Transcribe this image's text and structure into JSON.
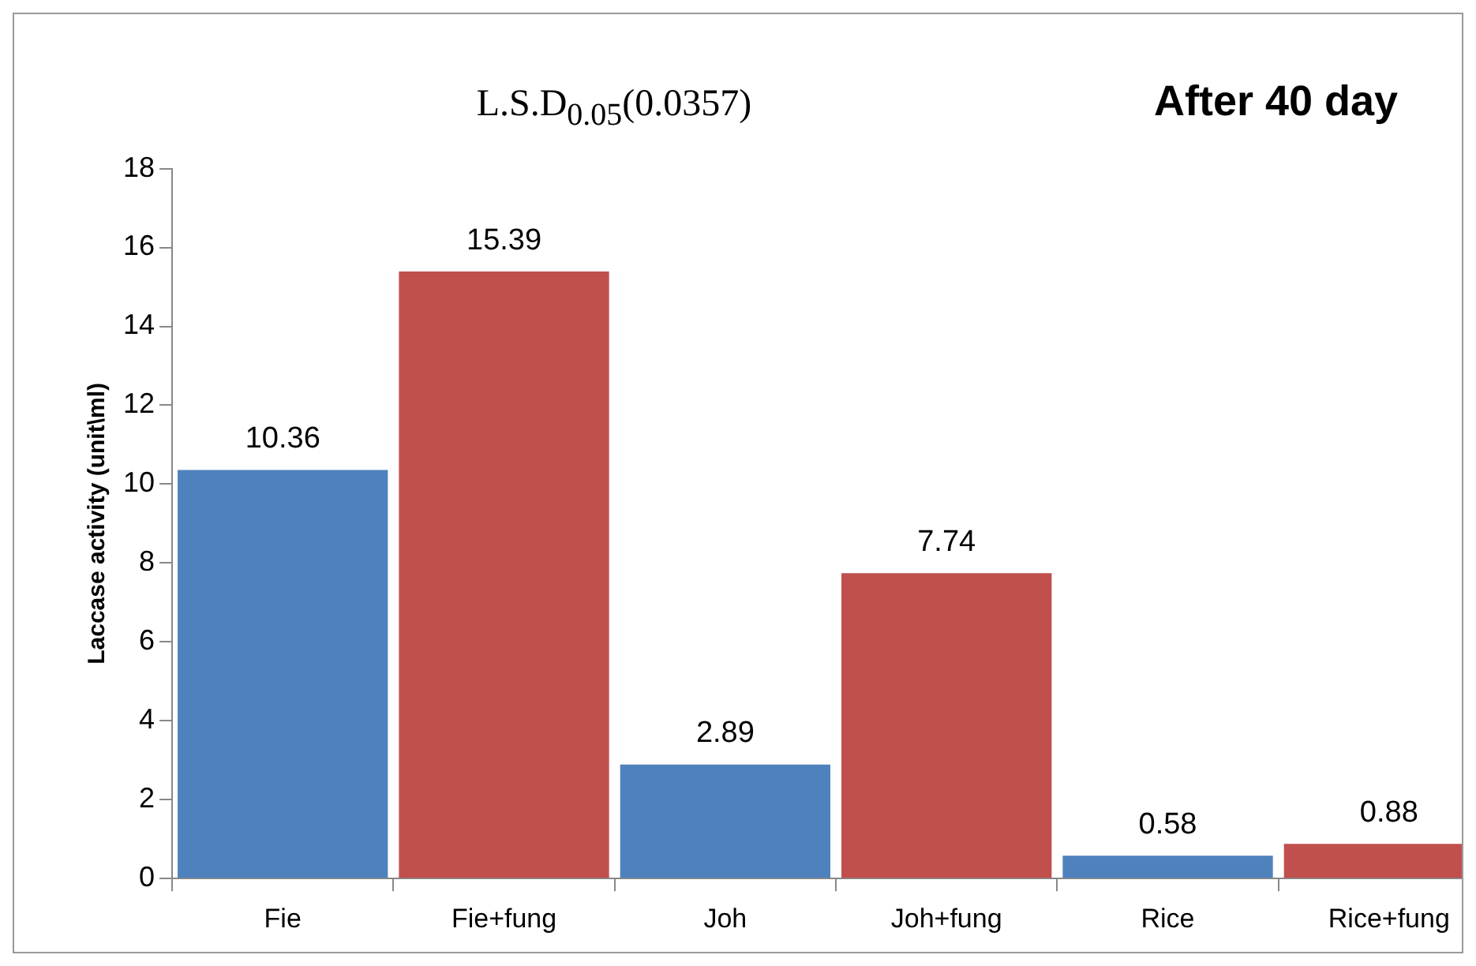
{
  "chart_data": {
    "type": "bar",
    "title": "L.S.D$_{0.05}$(0.0357)",
    "subtitle": "After 40 day",
    "ylabel": "Laccase activity (unit\\ml)",
    "categories": [
      "Fie",
      "Fie+fung",
      "Joh",
      "Joh+fung",
      "Rice",
      "Rice+fung"
    ],
    "values": [
      10.36,
      15.39,
      2.89,
      7.74,
      0.58,
      0.88
    ],
    "colors": [
      "#4f81bd",
      "#c0504d",
      "#4f81bd",
      "#c0504d",
      "#4f81bd",
      "#c0504d"
    ],
    "ylim": [
      0,
      18
    ],
    "yticks": [
      0,
      2,
      4,
      6,
      8,
      10,
      12,
      14,
      16,
      18
    ],
    "grid": false,
    "legend": false,
    "data_labels": true
  }
}
